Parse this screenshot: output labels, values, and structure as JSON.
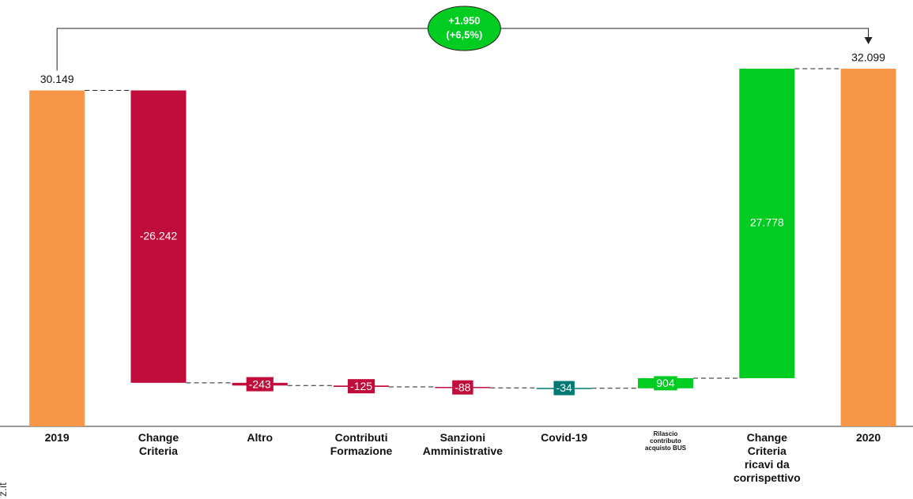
{
  "chart_data": {
    "type": "waterfall",
    "categories": [
      "2019",
      "Change\nCriteria",
      "Altro",
      "Contributi\nFormazione",
      "Sanzioni\nAmministrative",
      "Covid-19",
      "Rilascio\ncontributo\nacquisto BUS",
      "Change\nCriteria\nricavi da\ncorrispettivo",
      "2020"
    ],
    "values": [
      30149,
      -26242,
      -243,
      -125,
      -88,
      -34,
      904,
      27778,
      32099
    ],
    "value_labels": [
      "30.149",
      "-26.242",
      "-243",
      "-125",
      "-88",
      "-34",
      "904",
      "27.778",
      "32.099"
    ],
    "kinds": [
      "total",
      "delta",
      "delta",
      "delta",
      "delta",
      "delta",
      "delta",
      "delta",
      "total"
    ],
    "colors": [
      "#f79646",
      "#c00d3c",
      "#c00d3c",
      "#c00d3c",
      "#c00d3c",
      "#007a73",
      "#00cc22",
      "#00cc22",
      "#f79646"
    ],
    "annotation": {
      "lines": [
        "+1.950",
        "(+6,5%)"
      ],
      "color": "#00cc22"
    },
    "watermark": "z.it"
  }
}
